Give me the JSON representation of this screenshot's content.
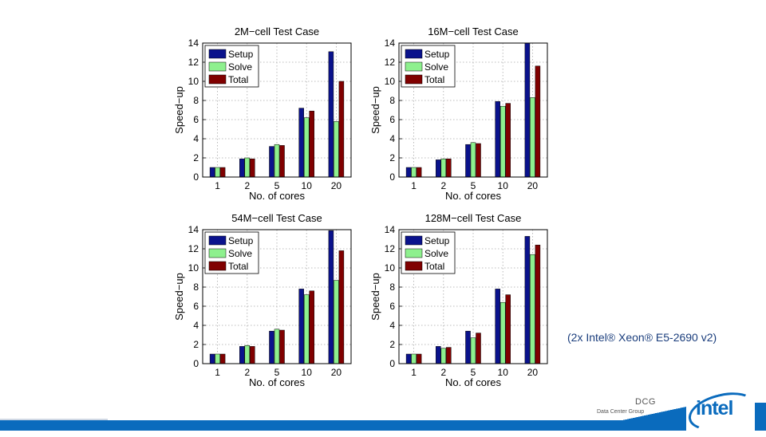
{
  "chart_data": [
    {
      "type": "bar",
      "title": "2M−cell Test Case",
      "xlabel": "No. of cores",
      "ylabel": "Speed−up",
      "categories": [
        "1",
        "2",
        "5",
        "10",
        "20"
      ],
      "ylim": [
        0,
        14
      ],
      "yticks": [
        "0",
        "2",
        "4",
        "6",
        "8",
        "10",
        "12",
        "14"
      ],
      "legend_position": "top-left",
      "series": [
        {
          "name": "Setup",
          "color": "#0a128c",
          "values": [
            1.0,
            1.9,
            3.2,
            7.2,
            13.1
          ]
        },
        {
          "name": "Solve",
          "color": "#8ef08e",
          "values": [
            1.0,
            2.0,
            3.4,
            6.2,
            5.8
          ]
        },
        {
          "name": "Total",
          "color": "#800000",
          "values": [
            1.0,
            1.9,
            3.3,
            6.9,
            10.0
          ]
        }
      ]
    },
    {
      "type": "bar",
      "title": "16M−cell Test Case",
      "xlabel": "No. of cores",
      "ylabel": "Speed−up",
      "categories": [
        "1",
        "2",
        "5",
        "10",
        "20"
      ],
      "ylim": [
        0,
        14
      ],
      "yticks": [
        "0",
        "2",
        "4",
        "6",
        "8",
        "10",
        "12",
        "14"
      ],
      "legend_position": "top-left",
      "series": [
        {
          "name": "Setup",
          "color": "#0a128c",
          "values": [
            1.0,
            1.8,
            3.4,
            7.9,
            14.0
          ]
        },
        {
          "name": "Solve",
          "color": "#8ef08e",
          "values": [
            1.0,
            1.9,
            3.6,
            7.4,
            8.3
          ]
        },
        {
          "name": "Total",
          "color": "#800000",
          "values": [
            1.0,
            1.9,
            3.5,
            7.7,
            11.6
          ]
        }
      ]
    },
    {
      "type": "bar",
      "title": "54M−cell Test Case",
      "xlabel": "No. of cores",
      "ylabel": "Speed−up",
      "categories": [
        "1",
        "2",
        "5",
        "10",
        "20"
      ],
      "ylim": [
        0,
        14
      ],
      "yticks": [
        "0",
        "2",
        "4",
        "6",
        "8",
        "10",
        "12",
        "14"
      ],
      "legend_position": "top-left",
      "series": [
        {
          "name": "Setup",
          "color": "#0a128c",
          "values": [
            1.0,
            1.8,
            3.4,
            7.8,
            13.9
          ]
        },
        {
          "name": "Solve",
          "color": "#8ef08e",
          "values": [
            1.0,
            1.9,
            3.6,
            7.2,
            8.7
          ]
        },
        {
          "name": "Total",
          "color": "#800000",
          "values": [
            1.0,
            1.8,
            3.5,
            7.6,
            11.8
          ]
        }
      ]
    },
    {
      "type": "bar",
      "title": "128M−cell Test Case",
      "xlabel": "No. of cores",
      "ylabel": "Speed−up",
      "categories": [
        "1",
        "2",
        "5",
        "10",
        "20"
      ],
      "ylim": [
        0,
        14
      ],
      "yticks": [
        "0",
        "2",
        "4",
        "6",
        "8",
        "10",
        "12",
        "14"
      ],
      "legend_position": "top-left",
      "series": [
        {
          "name": "Setup",
          "color": "#0a128c",
          "values": [
            1.0,
            1.8,
            3.4,
            7.8,
            13.3
          ]
        },
        {
          "name": "Solve",
          "color": "#8ef08e",
          "values": [
            1.0,
            1.6,
            2.7,
            6.4,
            11.4
          ]
        },
        {
          "name": "Total",
          "color": "#800000",
          "values": [
            1.0,
            1.7,
            3.2,
            7.2,
            12.4
          ]
        }
      ]
    }
  ],
  "caption": "(2x Intel® Xeon® E5-2690 v2)",
  "footer": {
    "group_abbrev": "DCG",
    "group_name": "Data Center Group",
    "logo_text": "intel"
  }
}
